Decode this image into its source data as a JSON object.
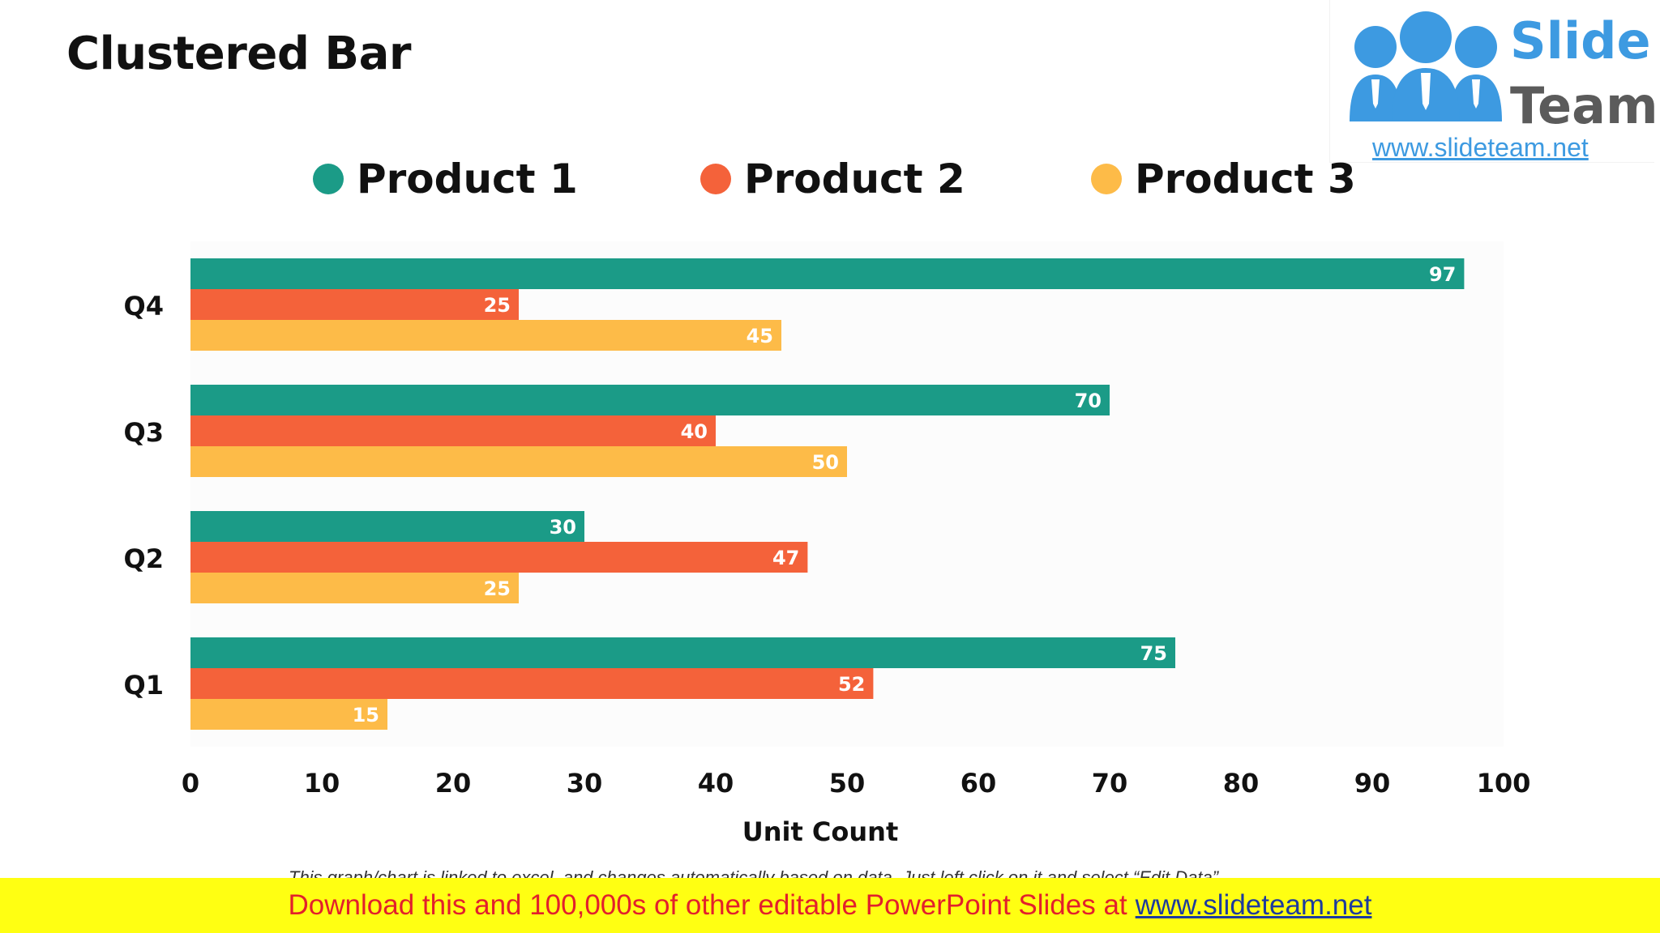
{
  "slide": {
    "title": "Clustered Bar"
  },
  "logo": {
    "word1": "Slide",
    "word2": "Team",
    "url": "www.slideteam.net"
  },
  "note": "This graph/chart is linked to excel, and changes automatically based on data. Just left click on it and select “Edit Data”.",
  "banner": {
    "text": "Download this and 100,000s of other editable PowerPoint Slides at",
    "link": "www.slideteam.net"
  },
  "colors": {
    "product1": "#1b9b87",
    "product2": "#f4623a",
    "product3": "#fdbb48",
    "banner_bg": "#ffff12",
    "banner_text": "#e2202c",
    "brand_blue": "#3d9ae1"
  },
  "chart_data": {
    "type": "bar",
    "orientation": "horizontal",
    "title": "Clustered Bar",
    "xlabel": "Unit Count",
    "ylabel": "",
    "categories": [
      "Q1",
      "Q2",
      "Q3",
      "Q4"
    ],
    "series": [
      {
        "name": "Product 1",
        "color": "#1b9b87",
        "values": [
          75,
          30,
          70,
          97
        ]
      },
      {
        "name": "Product 2",
        "color": "#f4623a",
        "values": [
          52,
          47,
          40,
          25
        ]
      },
      {
        "name": "Product 3",
        "color": "#fdbb48",
        "values": [
          15,
          25,
          50,
          45
        ]
      }
    ],
    "xlim": [
      0,
      100
    ],
    "xticks": [
      "0",
      "10",
      "20",
      "30",
      "40",
      "50",
      "60",
      "70",
      "80",
      "90",
      "100"
    ],
    "data_labels": true,
    "grid": false,
    "legend_position": "top"
  }
}
